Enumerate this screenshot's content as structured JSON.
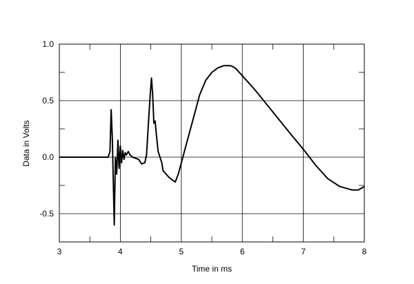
{
  "chart_data": {
    "type": "line",
    "title": "",
    "xlabel": "Time in ms",
    "ylabel": "Data in Volts",
    "xlim": [
      3,
      8
    ],
    "ylim": [
      -0.75,
      1.0
    ],
    "xticks": [
      3,
      4,
      5,
      6,
      7,
      8
    ],
    "xtick_labels": [
      "3",
      "4",
      "5",
      "6",
      "7",
      "8"
    ],
    "yticks": [
      -0.5,
      0.0,
      0.5,
      1.0
    ],
    "ytick_labels": [
      "-0.5",
      "0.0",
      "0.5",
      "1.0"
    ],
    "grid": true,
    "series": [
      {
        "name": "",
        "color": "#000000",
        "x": [
          3.0,
          3.5,
          3.8,
          3.83,
          3.85,
          3.87,
          3.89,
          3.9,
          3.91,
          3.92,
          3.94,
          3.96,
          3.98,
          4.0,
          4.02,
          4.04,
          4.06,
          4.08,
          4.1,
          4.13,
          4.16,
          4.2,
          4.25,
          4.3,
          4.35,
          4.4,
          4.43,
          4.46,
          4.49,
          4.51,
          4.53,
          4.55,
          4.57,
          4.59,
          4.62,
          4.65,
          4.68,
          4.7,
          4.75,
          4.8,
          4.85,
          4.9,
          4.95,
          5.0,
          5.1,
          5.2,
          5.3,
          5.4,
          5.5,
          5.6,
          5.7,
          5.8,
          5.85,
          5.9,
          6.0,
          6.2,
          6.5,
          6.8,
          7.0,
          7.2,
          7.4,
          7.6,
          7.8,
          7.9,
          8.0
        ],
        "y": [
          0.0,
          0.0,
          0.0,
          0.05,
          0.42,
          0.15,
          -0.35,
          -0.6,
          -0.3,
          0.0,
          -0.15,
          0.15,
          -0.1,
          0.1,
          -0.05,
          0.06,
          -0.02,
          0.04,
          0.02,
          0.05,
          0.02,
          0.0,
          -0.01,
          -0.02,
          -0.06,
          -0.05,
          0.02,
          0.3,
          0.55,
          0.7,
          0.55,
          0.3,
          0.32,
          0.2,
          0.05,
          0.0,
          -0.05,
          -0.12,
          -0.15,
          -0.18,
          -0.2,
          -0.22,
          -0.15,
          -0.05,
          0.15,
          0.35,
          0.55,
          0.68,
          0.75,
          0.79,
          0.81,
          0.81,
          0.8,
          0.78,
          0.72,
          0.6,
          0.4,
          0.2,
          0.07,
          -0.07,
          -0.19,
          -0.26,
          -0.29,
          -0.29,
          -0.26
        ]
      }
    ]
  }
}
